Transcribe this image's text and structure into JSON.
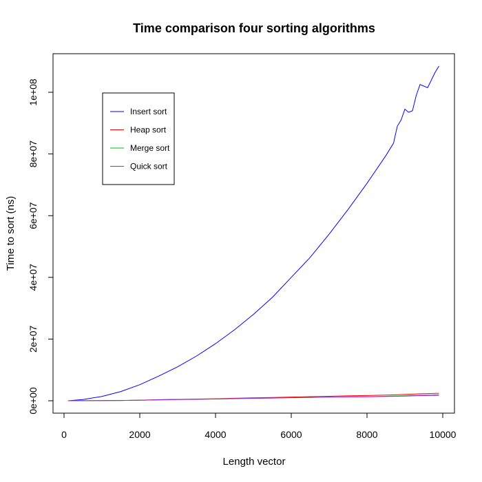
{
  "chart_data": {
    "type": "line",
    "title": "Time comparison four sorting algorithms",
    "xlabel": "Length vector",
    "ylabel": "Time to sort (ns)",
    "xlim": [
      0,
      10000
    ],
    "ylim": [
      0,
      110000000
    ],
    "x_ticks": [
      0,
      2000,
      4000,
      6000,
      8000,
      10000
    ],
    "x_tick_labels": [
      "0",
      "2000",
      "4000",
      "6000",
      "8000",
      "10000"
    ],
    "y_ticks": [
      0,
      20000000,
      40000000,
      60000000,
      80000000,
      100000000
    ],
    "y_tick_labels": [
      "0e+00",
      "2e+07",
      "4e+07",
      "6e+07",
      "8e+07",
      "1e+08"
    ],
    "grid": false,
    "legend_position": "top-left",
    "x": [
      100,
      500,
      1000,
      1500,
      2000,
      2500,
      3000,
      3500,
      4000,
      4500,
      5000,
      5500,
      6000,
      6500,
      7000,
      7500,
      8000,
      8500,
      8700,
      8800,
      8900,
      9000,
      9100,
      9200,
      9300,
      9400,
      9500,
      9600,
      9700,
      9800,
      9900
    ],
    "series": [
      {
        "name": "Insert sort",
        "color": "#0000ff",
        "values": [
          0,
          400000,
          1400000,
          3000000,
          5200000,
          8000000,
          11000000,
          14500000,
          18500000,
          23000000,
          28000000,
          33500000,
          40000000,
          46500000,
          54000000,
          62000000,
          70500000,
          79500000,
          83500000,
          89000000,
          91000000,
          94500000,
          93500000,
          94000000,
          99000000,
          102500000,
          102000000,
          101500000,
          104000000,
          106500000,
          108500000
        ]
      },
      {
        "name": "Heap sort",
        "color": "#ff0000",
        "values": [
          0,
          20000,
          50000,
          100000,
          200000,
          350000,
          450000,
          550000,
          650000,
          800000,
          950000,
          1050000,
          1200000,
          1350000,
          1450000,
          1600000,
          1700000,
          1850000,
          1900000,
          1950000,
          2000000,
          2050000,
          2100000,
          2150000,
          2200000,
          2250000,
          2300000,
          2320000,
          2350000,
          2380000,
          2400000
        ]
      },
      {
        "name": "Merge sort",
        "color": "#00bb00",
        "values": [
          0,
          20000,
          50000,
          90000,
          180000,
          300000,
          400000,
          480000,
          580000,
          700000,
          800000,
          900000,
          1000000,
          1100000,
          1200000,
          1300000,
          1350000,
          1450000,
          1500000,
          1550000,
          1580000,
          1600000,
          1650000,
          1700000,
          1750000,
          1800000,
          1800000,
          1850000,
          1850000,
          1900000,
          1900000
        ]
      },
      {
        "name": "Quick sort",
        "color": "#a020f0",
        "values": [
          0,
          15000,
          40000,
          80000,
          160000,
          280000,
          380000,
          450000,
          560000,
          680000,
          780000,
          880000,
          980000,
          1080000,
          1150000,
          1250000,
          1300000,
          1380000,
          1420000,
          1450000,
          1480000,
          1500000,
          1550000,
          1580000,
          1620000,
          1650000,
          1680000,
          1700000,
          1720000,
          1750000,
          1780000
        ]
      }
    ]
  }
}
